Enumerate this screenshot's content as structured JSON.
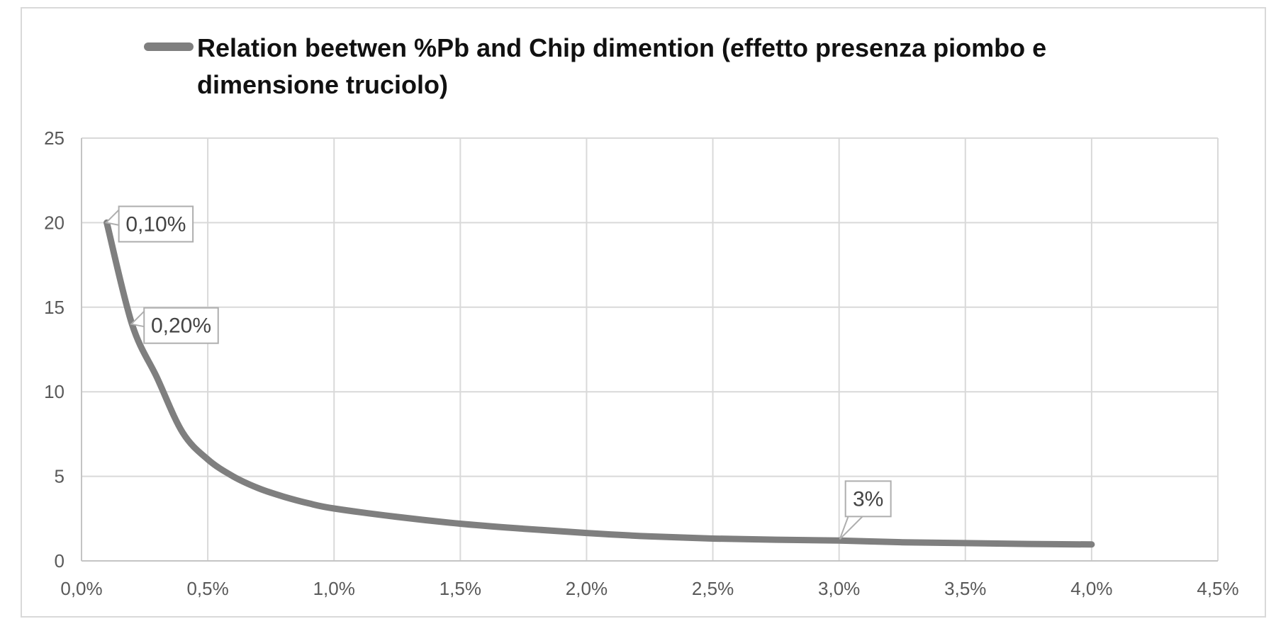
{
  "window": {
    "background_color": "#ffffff",
    "border_color": "#d9d9d9"
  },
  "legend": {
    "marker": "thick-gray-line",
    "label_lines": [
      "Relation beetwen %Pb and Chip dimention (effetto presenza piombo e",
      "dimensione truciolo)"
    ]
  },
  "chart_data": {
    "type": "line",
    "title": "Relation beetwen %Pb and Chip dimention (effetto presenza piombo e dimensione truciolo)",
    "xlabel": "",
    "ylabel": "",
    "xlim": [
      0,
      4.5
    ],
    "ylim": [
      0,
      25
    ],
    "grid": true,
    "legend_position": "top",
    "x_tick_labels": [
      "0,0%",
      "0,5%",
      "1,0%",
      "1,5%",
      "2,0%",
      "2,5%",
      "3,0%",
      "3,5%",
      "4,0%",
      "4,5%"
    ],
    "x_tick_values": [
      0,
      0.5,
      1.0,
      1.5,
      2.0,
      2.5,
      3.0,
      3.5,
      4.0,
      4.5
    ],
    "y_tick_labels": [
      "0",
      "5",
      "10",
      "15",
      "20",
      "25"
    ],
    "y_tick_values": [
      0,
      5,
      10,
      15,
      20,
      25
    ],
    "series": [
      {
        "name": "Relation beetwen %Pb and Chip dimention (effetto presenza piombo e dimensione truciolo)",
        "color": "#7f7f7f",
        "x": [
          0.1,
          0.2,
          0.3,
          0.4,
          0.5,
          0.6,
          0.7,
          0.8,
          0.9,
          1.0,
          1.25,
          1.5,
          1.75,
          2.0,
          2.25,
          2.5,
          2.75,
          3.0,
          3.25,
          3.5,
          3.75,
          4.0
        ],
        "y": [
          20,
          14,
          10.8,
          7.6,
          6.0,
          5.0,
          4.3,
          3.8,
          3.4,
          3.1,
          2.6,
          2.2,
          1.9,
          1.65,
          1.45,
          1.32,
          1.25,
          1.2,
          1.1,
          1.05,
          1.0,
          0.97
        ]
      }
    ],
    "data_labels": [
      {
        "x": 0.1,
        "y": 20,
        "text": "0,10%",
        "placement": "right"
      },
      {
        "x": 0.2,
        "y": 14,
        "text": "0,20%",
        "placement": "right"
      },
      {
        "x": 3.0,
        "y": 1.2,
        "text": "3%",
        "placement": "above"
      }
    ],
    "colors": {
      "series": "#7f7f7f",
      "gridline": "#d9d9d9",
      "axis": "#c4c4c4",
      "tick_text": "#595959",
      "callout_border": "#aeaeae",
      "callout_fill": "#ffffff",
      "callout_text": "#444444"
    }
  }
}
